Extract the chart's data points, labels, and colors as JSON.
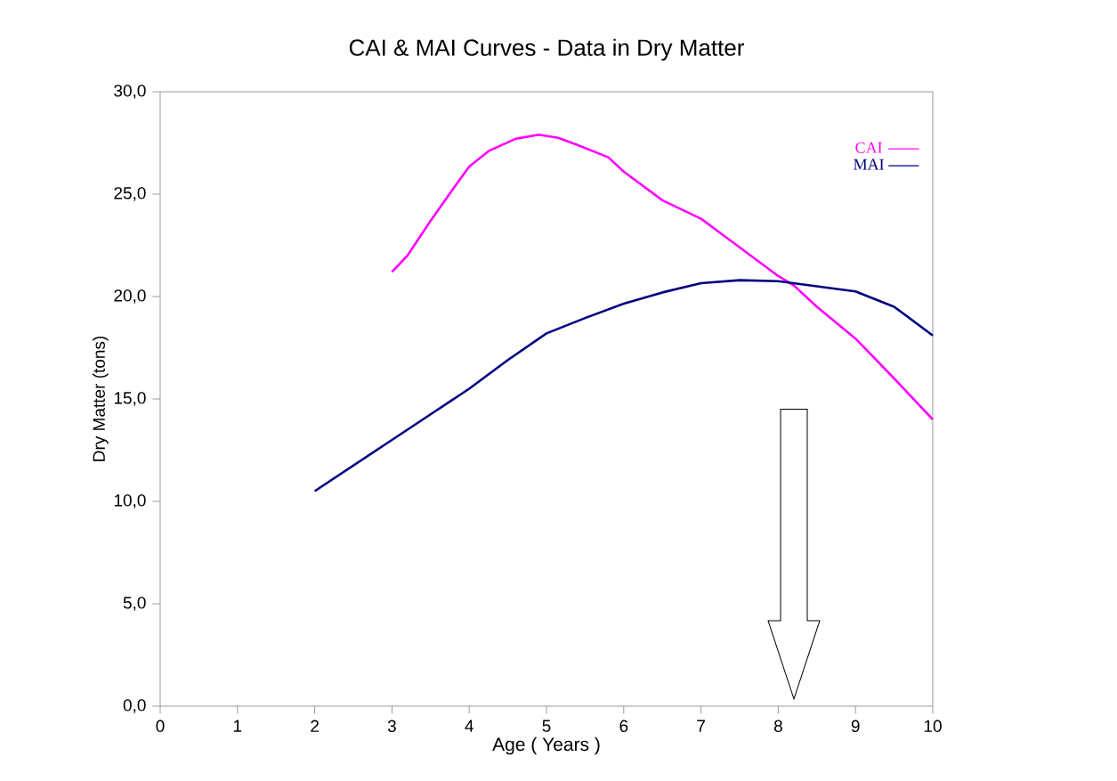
{
  "chart_data": {
    "type": "line",
    "title": "CAI & MAI Curves - Data in Dry Matter",
    "xlabel": "Age ( Years )",
    "ylabel": "Dry Matter (tons)",
    "xlim": [
      0,
      10
    ],
    "xticks": [
      0,
      1,
      2,
      3,
      4,
      5,
      6,
      7,
      8,
      9,
      {
        "value": 10,
        "label": "10"
      }
    ],
    "ylim": [
      0,
      30
    ],
    "yticks": [
      {
        "value": 0,
        "label": "0,0"
      },
      {
        "value": 5,
        "label": "5,0"
      },
      {
        "value": 10,
        "label": "10,0"
      },
      {
        "value": 15,
        "label": "15,0"
      },
      {
        "value": 20,
        "label": "20,0"
      },
      {
        "value": 25,
        "label": "25,0"
      },
      {
        "value": 30,
        "label": "30,0"
      }
    ],
    "grid": false,
    "legend": "top right",
    "marker": "none",
    "line_style": "solid",
    "series": [
      {
        "name": "CAI",
        "color": "#ff00ff",
        "x": [
          3,
          3.2,
          3.5,
          3.8,
          4.0,
          4.25,
          4.6,
          4.9,
          5.15,
          5.4,
          5.8,
          6.0,
          6.5,
          7.0,
          7.5,
          8.0,
          8.2,
          8.5,
          9.0,
          9.5,
          10
        ],
        "values": [
          21.2,
          22.0,
          23.7,
          25.3,
          26.35,
          27.1,
          27.7,
          27.9,
          27.75,
          27.4,
          26.8,
          26.1,
          24.7,
          23.8,
          22.4,
          21.0,
          20.55,
          19.5,
          17.95,
          16.0,
          14.0
        ]
      },
      {
        "name": "MAI",
        "color": "#000080",
        "x": [
          2,
          3,
          3.5,
          4,
          4.5,
          5,
          5.5,
          6,
          6.5,
          7,
          7.5,
          8,
          8.5,
          9,
          9.5,
          10
        ],
        "values": [
          10.5,
          13.0,
          14.25,
          15.5,
          16.9,
          18.2,
          18.95,
          19.65,
          20.2,
          20.65,
          20.8,
          20.75,
          20.5,
          20.25,
          19.5,
          18.1
        ]
      }
    ]
  }
}
